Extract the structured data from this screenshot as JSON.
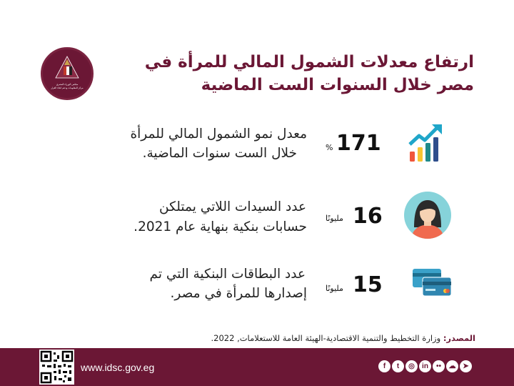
{
  "logo": {
    "line1": "مجلس الوزراء المصري",
    "line2": "مركز المعلومات ودعم اتخاذ القرار"
  },
  "title": {
    "line1": "ارتفاع معدلات الشمول المالي للمرأة في",
    "line2": "مصر خلال السنوات الست الماضية"
  },
  "stats": [
    {
      "icon": "growth-chart-icon",
      "value": "171",
      "unit": "%",
      "desc_line1": "معدل نمو الشمول المالي للمرأة",
      "desc_line2": "خلال الست سنوات الماضية."
    },
    {
      "icon": "woman-avatar-icon",
      "value": "16",
      "unit": "مليونًا",
      "desc_line1": "عدد السيدات اللاتي يمتلكن",
      "desc_line2": "حسابات بنكية بنهاية عام 2021."
    },
    {
      "icon": "bank-cards-icon",
      "value": "15",
      "unit": "مليونًا",
      "desc_line1": "عدد البطاقات البنكية التي تم",
      "desc_line2": "إصدارها للمرأة في مصر."
    }
  ],
  "source": {
    "label": "المصدر:",
    "text": " وزارة التخطيط والتنمية الاقتصادية-الهيئة العامة للاستعلامات, 2022."
  },
  "footer": {
    "url": "www.idsc.gov.eg",
    "social": [
      {
        "icon": "telegram-icon",
        "glyph": "➤"
      },
      {
        "icon": "soundcloud-icon",
        "glyph": "☁"
      },
      {
        "icon": "flickr-icon",
        "glyph": "••"
      },
      {
        "icon": "linkedin-icon",
        "glyph": "in"
      },
      {
        "icon": "instagram-icon",
        "glyph": "◎"
      },
      {
        "icon": "twitter-icon",
        "glyph": "t"
      },
      {
        "icon": "facebook-icon",
        "glyph": "f"
      }
    ]
  },
  "colors": {
    "brand": "#6b1735",
    "chart_bars": [
      "#f0563a",
      "#f7c531",
      "#1f8a8a",
      "#2f4e8c"
    ],
    "arrow": "#1fa6c9",
    "avatar_bg": "#86d3da",
    "card": "#3aa1c9"
  }
}
